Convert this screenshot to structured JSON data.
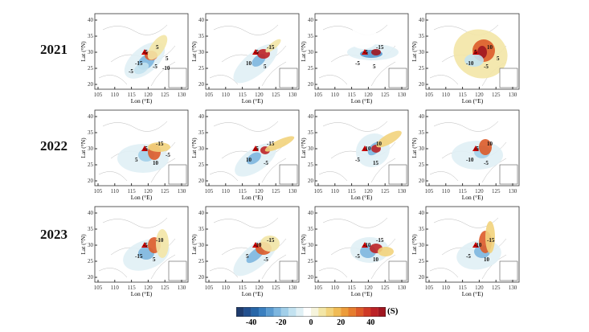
{
  "rows": [
    {
      "year": "2021",
      "panels": [
        {
          "contour_labels": [
            "-5",
            "5",
            "-15",
            "-5",
            "5",
            "-10",
            "-5"
          ]
        },
        {
          "contour_labels": [
            "-5",
            "-15",
            "10",
            "5"
          ]
        },
        {
          "contour_labels": [
            "-5",
            "-15",
            "-5",
            "5"
          ]
        },
        {
          "contour_labels": [
            "5",
            "10",
            "-10",
            "-5",
            "5"
          ]
        }
      ]
    },
    {
      "year": "2022",
      "panels": [
        {
          "contour_labels": [
            "-5",
            "-15",
            "5",
            "10",
            "-5"
          ]
        },
        {
          "contour_labels": [
            "-5",
            "-15",
            "10",
            "-5"
          ]
        },
        {
          "contour_labels": [
            "-10",
            "10",
            "-5",
            "15"
          ]
        },
        {
          "contour_labels": [
            "-5",
            "10",
            "-10",
            "-5"
          ]
        }
      ]
    },
    {
      "year": "2023",
      "panels": [
        {
          "contour_labels": [
            "-5",
            "-10",
            "-15",
            "5"
          ]
        },
        {
          "contour_labels": [
            "-10",
            "-15",
            "5",
            "-5"
          ]
        },
        {
          "contour_labels": [
            "-10",
            "-15",
            "-5",
            "10"
          ]
        },
        {
          "contour_labels": [
            "-10",
            "-15",
            "-5",
            "10"
          ]
        }
      ]
    }
  ],
  "axes": {
    "xlabel": "Lon (°E)",
    "ylabel": "Lat (°N)",
    "xticks": [
      "105",
      "110",
      "115",
      "120",
      "125",
      "130"
    ],
    "yticks": [
      "20",
      "25",
      "30",
      "35",
      "40"
    ]
  },
  "colorbar": {
    "unit": "(S)",
    "range": [
      -50,
      50
    ],
    "ticks": [
      "-40",
      "-20",
      "0",
      "20",
      "40"
    ],
    "colors": [
      "#1f3c6e",
      "#22508f",
      "#2766a8",
      "#3a7fbf",
      "#5a9bd0",
      "#7db6df",
      "#a2cfe9",
      "#c3e2f0",
      "#e0f0f5",
      "#ffffff",
      "#f6f4dc",
      "#f3e6a6",
      "#f2d37c",
      "#f0bb55",
      "#ec9c3a",
      "#e67d2e",
      "#dd5b29",
      "#cf3a26",
      "#bc2226",
      "#a01620"
    ]
  }
}
